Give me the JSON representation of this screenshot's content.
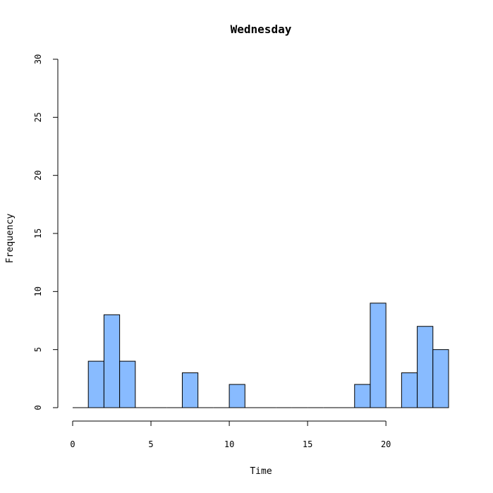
{
  "chart_data": {
    "type": "bar",
    "title": "Wednesday",
    "xlabel": "Time",
    "ylabel": "Frequency",
    "xlim": [
      0,
      24
    ],
    "ylim": [
      0,
      30
    ],
    "x_ticks": [
      0,
      5,
      10,
      15,
      20
    ],
    "y_ticks": [
      0,
      5,
      10,
      15,
      20,
      25,
      30
    ],
    "bar_color": "#88BBFF",
    "bins": [
      {
        "start": 0,
        "end": 1,
        "count": 0
      },
      {
        "start": 1,
        "end": 2,
        "count": 4
      },
      {
        "start": 2,
        "end": 3,
        "count": 8
      },
      {
        "start": 3,
        "end": 4,
        "count": 4
      },
      {
        "start": 4,
        "end": 5,
        "count": 0
      },
      {
        "start": 5,
        "end": 6,
        "count": 0
      },
      {
        "start": 6,
        "end": 7,
        "count": 0
      },
      {
        "start": 7,
        "end": 8,
        "count": 3
      },
      {
        "start": 8,
        "end": 9,
        "count": 0
      },
      {
        "start": 9,
        "end": 10,
        "count": 0
      },
      {
        "start": 10,
        "end": 11,
        "count": 2
      },
      {
        "start": 11,
        "end": 12,
        "count": 0
      },
      {
        "start": 12,
        "end": 13,
        "count": 0
      },
      {
        "start": 13,
        "end": 14,
        "count": 0
      },
      {
        "start": 14,
        "end": 15,
        "count": 0
      },
      {
        "start": 15,
        "end": 16,
        "count": 0
      },
      {
        "start": 16,
        "end": 17,
        "count": 0
      },
      {
        "start": 17,
        "end": 18,
        "count": 0
      },
      {
        "start": 18,
        "end": 19,
        "count": 2
      },
      {
        "start": 19,
        "end": 20,
        "count": 9
      },
      {
        "start": 20,
        "end": 21,
        "count": 0
      },
      {
        "start": 21,
        "end": 22,
        "count": 3
      },
      {
        "start": 22,
        "end": 23,
        "count": 7
      },
      {
        "start": 23,
        "end": 24,
        "count": 5
      }
    ]
  }
}
